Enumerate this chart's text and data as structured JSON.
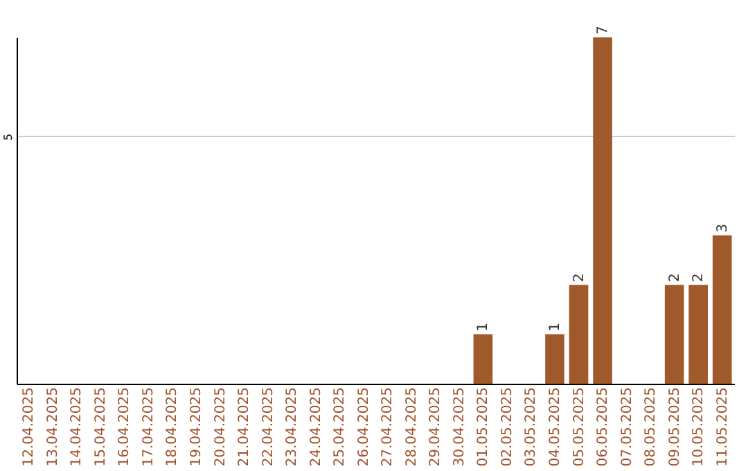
{
  "chart_data": {
    "type": "bar",
    "categories": [
      "12.04.2025",
      "13.04.2025",
      "14.04.2025",
      "15.04.2025",
      "16.04.2025",
      "17.04.2025",
      "18.04.2025",
      "19.04.2025",
      "20.04.2025",
      "21.04.2025",
      "22.04.2025",
      "23.04.2025",
      "24.04.2025",
      "25.04.2025",
      "26.04.2025",
      "27.04.2025",
      "28.04.2025",
      "29.04.2025",
      "30.04.2025",
      "01.05.2025",
      "02.05.2025",
      "03.05.2025",
      "04.05.2025",
      "05.05.2025",
      "06.05.2025",
      "07.05.2025",
      "08.05.2025",
      "09.05.2025",
      "10.05.2025",
      "11.05.2025"
    ],
    "values": [
      null,
      null,
      null,
      null,
      null,
      null,
      null,
      null,
      null,
      null,
      null,
      null,
      null,
      null,
      null,
      null,
      null,
      null,
      null,
      1,
      null,
      null,
      1,
      2,
      7,
      null,
      null,
      2,
      2,
      3
    ],
    "value_labels": [
      null,
      null,
      null,
      null,
      null,
      null,
      null,
      null,
      null,
      null,
      null,
      null,
      null,
      null,
      null,
      null,
      null,
      null,
      null,
      "1",
      null,
      null,
      "1",
      "2",
      "7",
      null,
      null,
      "2",
      "2",
      "3"
    ],
    "color": "#a0592a",
    "ylim": [
      0,
      7
    ],
    "yticks": [
      5
    ],
    "grid": "y"
  }
}
